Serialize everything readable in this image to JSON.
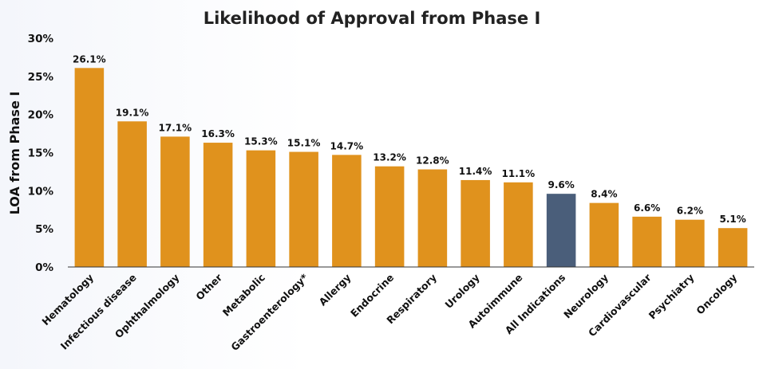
{
  "chart_data": {
    "type": "bar",
    "title": "Likelihood of Approval from Phase I",
    "xlabel": "",
    "ylabel": "LOA from Phase I",
    "ylim": [
      0,
      30
    ],
    "yticks": [
      "0%",
      "5%",
      "10%",
      "15%",
      "20%",
      "25%",
      "30%"
    ],
    "grid": false,
    "categories": [
      "Hematology",
      "Infectious disease",
      "Ophthalmology",
      "Other",
      "Metabolic",
      "Gastroenterology*",
      "Allergy",
      "Endocrine",
      "Respiratory",
      "Urology",
      "Autoimmune",
      "All Indications",
      "Neurology",
      "Cardiovascular",
      "Psychiatry",
      "Oncology"
    ],
    "values": [
      26.1,
      19.1,
      17.1,
      16.3,
      15.3,
      15.1,
      14.7,
      13.2,
      12.8,
      11.4,
      11.1,
      9.6,
      8.4,
      6.6,
      6.2,
      5.1
    ],
    "data_labels": [
      "26.1%",
      "19.1%",
      "17.1%",
      "16.3%",
      "15.3%",
      "15.1%",
      "14.7%",
      "13.2%",
      "12.8%",
      "11.4%",
      "11.1%",
      "9.6%",
      "8.4%",
      "6.6%",
      "6.2%",
      "5.1%"
    ],
    "highlight_category": "All Indications",
    "colors": {
      "bar": "#E0921D",
      "highlight": "#4A5E7A",
      "axis": "#333333"
    }
  }
}
